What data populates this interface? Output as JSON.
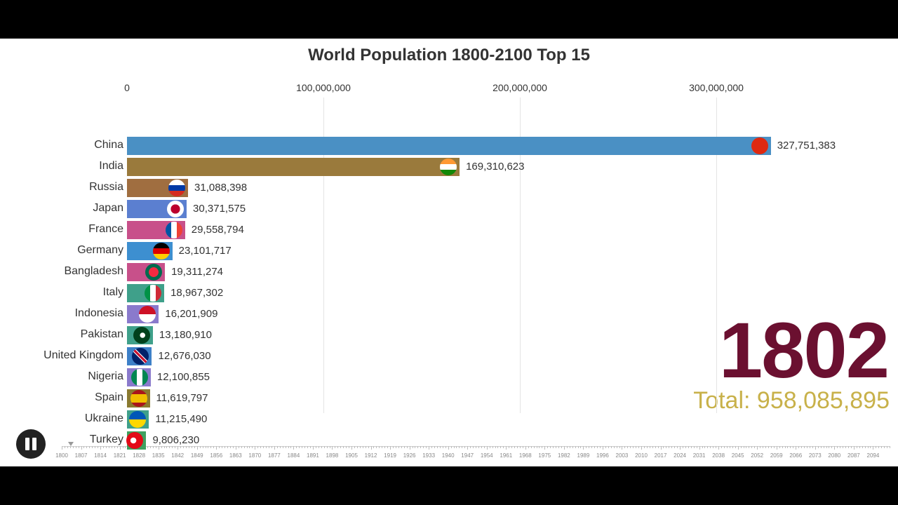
{
  "chart_data": {
    "type": "bar",
    "orientation": "horizontal",
    "title": "World Population 1800-2100 Top 15",
    "xlim": [
      0,
      330000000
    ],
    "x_ticks": [
      "0",
      "100,000,000",
      "200,000,000",
      "300,000,000"
    ],
    "x_tick_values": [
      0,
      100000000,
      200000000,
      300000000
    ],
    "grid": true,
    "categories": [
      "China",
      "India",
      "Russia",
      "Japan",
      "France",
      "Germany",
      "Bangladesh",
      "Italy",
      "Indonesia",
      "Pakistan",
      "United Kingdom",
      "Nigeria",
      "Spain",
      "Ukraine",
      "Turkey"
    ],
    "values": [
      327751383,
      169310623,
      31088398,
      30371575,
      29558794,
      23101717,
      19311274,
      18967302,
      16201909,
      13180910,
      12676030,
      12100855,
      11619797,
      11215490,
      9806230
    ],
    "value_labels": [
      "327,751,383",
      "169,310,623",
      "31,088,398",
      "30,371,575",
      "29,558,794",
      "23,101,717",
      "19,311,274",
      "18,967,302",
      "16,201,909",
      "13,180,910",
      "12,676,030",
      "12,100,855",
      "11,619,797",
      "11,215,490",
      "9,806,230"
    ],
    "colors": [
      "#4a90c4",
      "#9a7a3c",
      "#a06e40",
      "#5b7fd0",
      "#c8508a",
      "#3d8fd0",
      "#c8508a",
      "#3fa08a",
      "#8a7acc",
      "#3fa08a",
      "#3d80c8",
      "#8a7acc",
      "#8a7a30",
      "#3fa08a",
      "#3fa060"
    ],
    "flags": [
      "china",
      "india",
      "russia",
      "japan",
      "france",
      "germany",
      "bangladesh",
      "italy",
      "indonesia",
      "pakistan",
      "united-kingdom",
      "nigeria",
      "spain",
      "ukraine",
      "turkey"
    ],
    "year": "1802",
    "total": "Total: 958,085,895"
  },
  "timeline": {
    "labels": [
      "1800",
      "1807",
      "1814",
      "1821",
      "1828",
      "1835",
      "1842",
      "1849",
      "1856",
      "1863",
      "1870",
      "1877",
      "1884",
      "1891",
      "1898",
      "1905",
      "1912",
      "1919",
      "1926",
      "1933",
      "1940",
      "1947",
      "1954",
      "1961",
      "1968",
      "1975",
      "1982",
      "1989",
      "1996",
      "2003",
      "2010",
      "2017",
      "2024",
      "2031",
      "2038",
      "2045",
      "2052",
      "2059",
      "2066",
      "2073",
      "2080",
      "2087",
      "2094"
    ],
    "range": [
      1800,
      2100
    ],
    "current": 1802,
    "play_icon": "pause-icon"
  }
}
